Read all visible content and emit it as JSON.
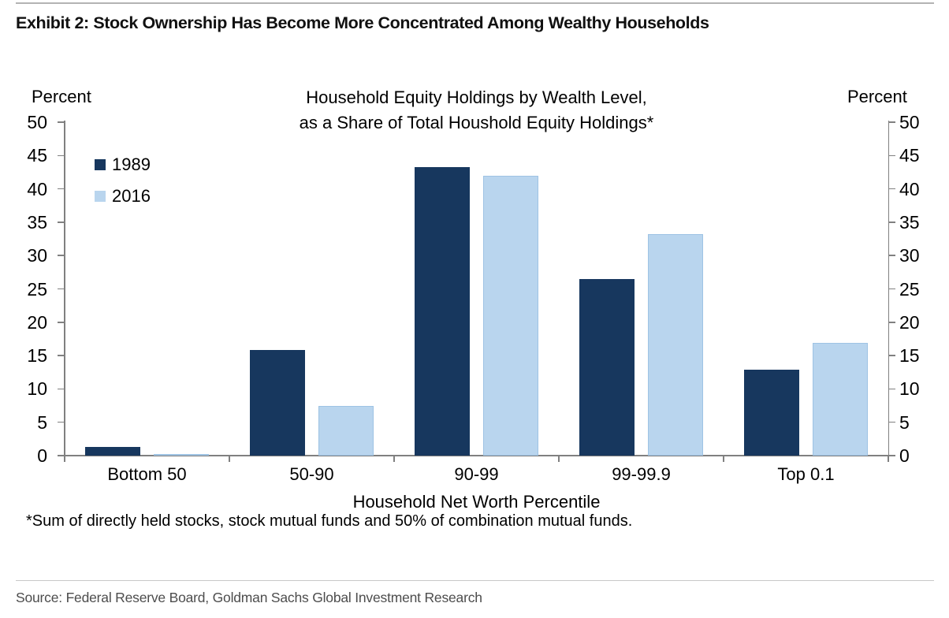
{
  "page": {
    "exhibit_title": "Exhibit 2: Stock Ownership Has Become More Concentrated Among Wealthy Households",
    "source_line": "Source: Federal Reserve Board, Goldman Sachs Global Investment Research"
  },
  "chart_data": {
    "type": "bar",
    "title_line1": "Household Equity Holdings by Wealth Level,",
    "title_line2": "as a Share of Total Houshold Equity Holdings*",
    "categories": [
      "Bottom 50",
      "50-90",
      "90-99",
      "99-99.9",
      "Top 0.1"
    ],
    "series": [
      {
        "name": "1989",
        "color": "#17375e",
        "values": [
          1.3,
          15.8,
          43.3,
          26.5,
          12.9
        ]
      },
      {
        "name": "2016",
        "color": "#b9d5ee",
        "values": [
          0.2,
          7.5,
          42.0,
          33.2,
          16.9
        ]
      }
    ],
    "xlabel": "Household Net Worth Percentile",
    "ylabel_left": "Percent",
    "ylabel_right": "Percent",
    "ylim": [
      0,
      50
    ],
    "ytick_step": 5,
    "grid": false,
    "legend_position": "top-left",
    "axis_color": "#808080",
    "footnote": "*Sum of directly held stocks, stock mutual funds and 50% of combination mutual funds."
  }
}
